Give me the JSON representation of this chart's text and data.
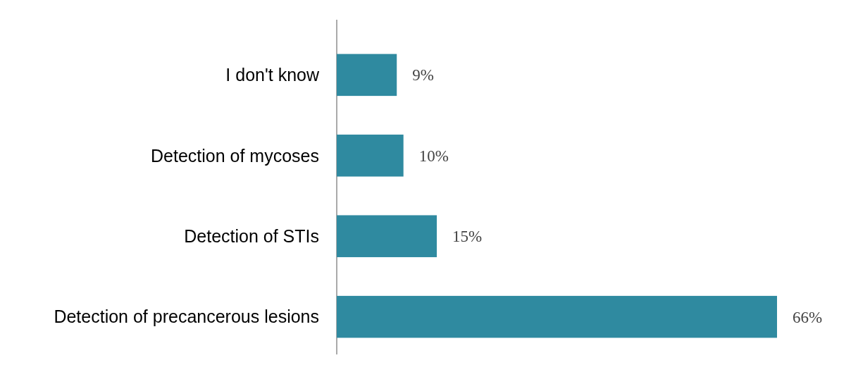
{
  "chart_data": {
    "type": "bar",
    "orientation": "horizontal",
    "categories": [
      "I don't know",
      "Detection of mycoses",
      "Detection of STIs",
      "Detection of precancerous lesions"
    ],
    "values": [
      9,
      10,
      15,
      66
    ],
    "color": "#2f8aa0",
    "value_labels": [
      "9%",
      "10%",
      "15%",
      "66%"
    ]
  }
}
